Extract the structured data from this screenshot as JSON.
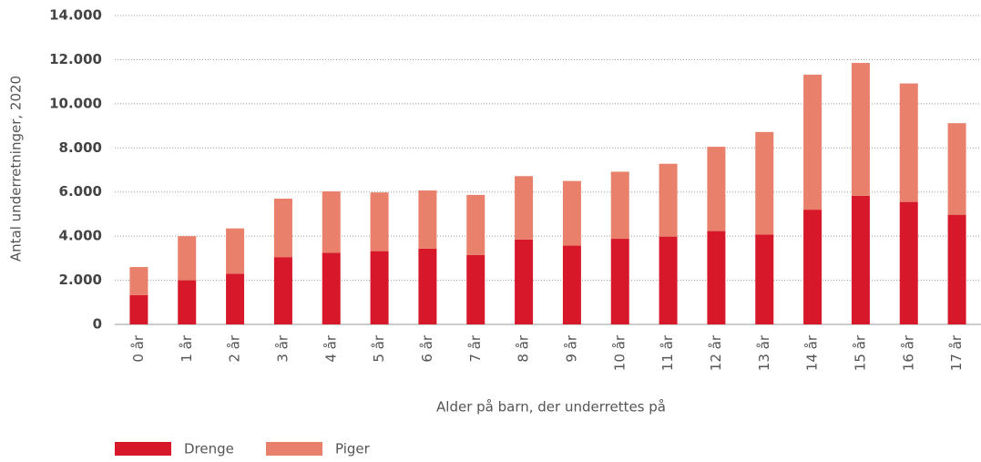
{
  "chart_data": {
    "type": "stacked_bar",
    "y_label": "Antal underretninger, 2020",
    "x_label": "Alder på barn, der underrettes på",
    "categories": [
      "0 år",
      "1 år",
      "2 år",
      "3 år",
      "4 år",
      "5 år",
      "6 år",
      "7 år",
      "8 år",
      "9 år",
      "10 år",
      "11 år",
      "12 år",
      "13 år",
      "14 år",
      "15 år",
      "16 år",
      "17 år"
    ],
    "series": [
      {
        "name": "Drenge",
        "color": "#d7182a",
        "values": [
          1330,
          2000,
          2300,
          3050,
          3250,
          3320,
          3430,
          3150,
          3850,
          3570,
          3880,
          3980,
          4230,
          4070,
          5200,
          5830,
          5550,
          4970
        ]
      },
      {
        "name": "Piger",
        "color": "#e8806b",
        "values": [
          1270,
          2000,
          2050,
          2650,
          2780,
          2660,
          2640,
          2720,
          2870,
          2930,
          3040,
          3300,
          3820,
          4650,
          6120,
          6020,
          5370,
          4150
        ]
      }
    ],
    "ylim": [
      0,
      14000
    ],
    "yticks": [
      0,
      {
        "value": 2000,
        "label": "2.000"
      },
      {
        "value": 4000,
        "label": "4.000"
      },
      {
        "value": 6000,
        "label": "6.000"
      },
      {
        "value": 8000,
        "label": "8.000"
      },
      {
        "value": 10000,
        "label": "10.000"
      },
      {
        "value": 12000,
        "label": "12.000"
      },
      {
        "value": 14000,
        "label": "14.000"
      }
    ],
    "grid": true,
    "legend": "bottom-left"
  }
}
